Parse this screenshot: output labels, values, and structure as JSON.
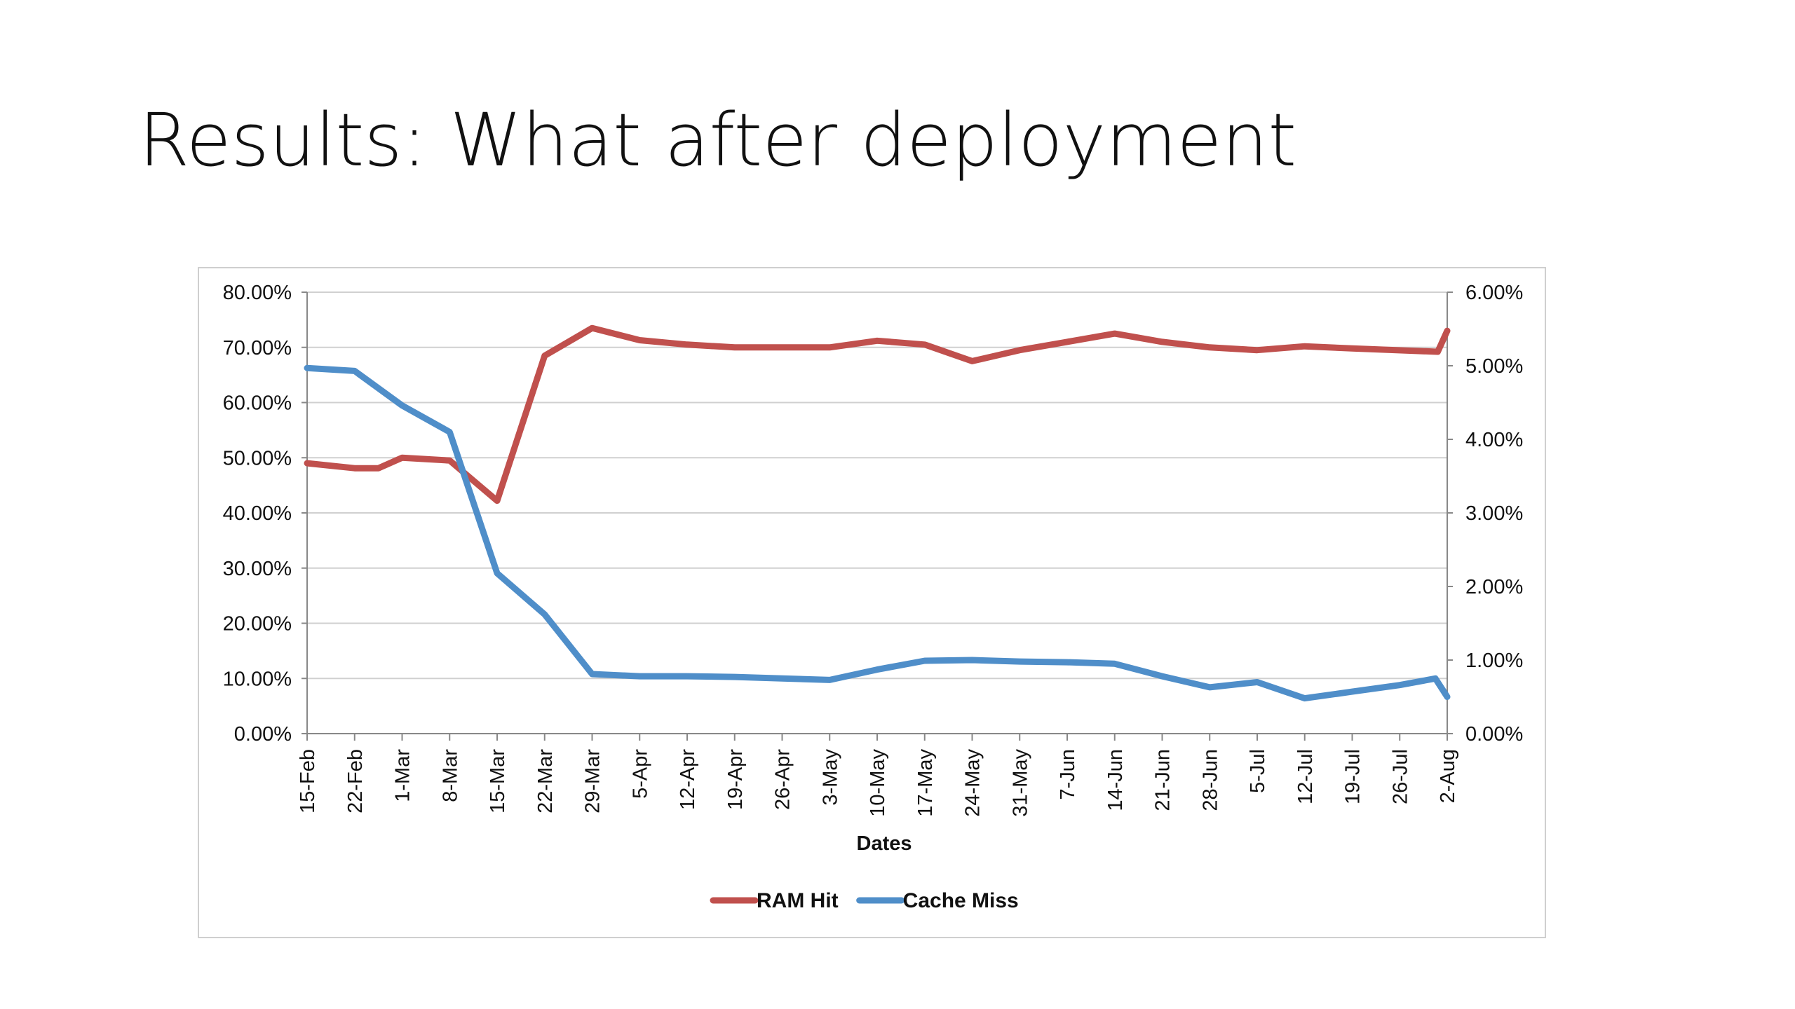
{
  "slide": {
    "title": "Results: What after deployment"
  },
  "chart_data": {
    "type": "line",
    "title": "",
    "xlabel": "Dates",
    "ylabel": "",
    "grid": true,
    "legend_position": "bottom",
    "x": [
      "15-Feb",
      "22-Feb",
      "1-Mar",
      "8-Mar",
      "15-Mar",
      "22-Mar",
      "29-Mar",
      "5-Apr",
      "12-Apr",
      "19-Apr",
      "26-Apr",
      "3-May",
      "10-May",
      "17-May",
      "24-May",
      "31-May",
      "7-Jun",
      "14-Jun",
      "21-Jun",
      "28-Jun",
      "5-Jul",
      "12-Jul",
      "19-Jul",
      "26-Jul",
      "2-Aug"
    ],
    "y_left": {
      "range": [
        0,
        80
      ],
      "ticks": [
        "0.00%",
        "10.00%",
        "20.00%",
        "30.00%",
        "40.00%",
        "50.00%",
        "60.00%",
        "70.00%",
        "80.00%"
      ]
    },
    "y_right": {
      "range": [
        0,
        6
      ],
      "ticks": [
        "0.00%",
        "1.00%",
        "2.00%",
        "3.00%",
        "4.00%",
        "5.00%",
        "6.00%"
      ]
    },
    "series": [
      {
        "name": "RAM Hit",
        "axis": "left",
        "color": "#c0504d",
        "points": [
          [
            "15-Feb",
            49.0
          ],
          [
            "22-Feb",
            48.1
          ],
          [
            "22-Feb",
            48.1
          ],
          [
            "1-Mar",
            50.0
          ],
          [
            "8-Mar",
            49.5
          ],
          [
            "15-Mar",
            42.2
          ],
          [
            "22-Mar",
            68.5
          ],
          [
            "29-Mar",
            73.5
          ],
          [
            "5-Apr",
            71.3
          ],
          [
            "12-Apr",
            70.5
          ],
          [
            "19-Apr",
            70.0
          ],
          [
            "26-Apr",
            70.0
          ],
          [
            "3-May",
            70.0
          ],
          [
            "10-May",
            71.2
          ],
          [
            "17-May",
            70.5
          ],
          [
            "24-May",
            67.5
          ],
          [
            "31-May",
            69.5
          ],
          [
            "7-Jun",
            71.0
          ],
          [
            "14-Jun",
            72.5
          ],
          [
            "21-Jun",
            71.0
          ],
          [
            "28-Jun",
            70.0
          ],
          [
            "5-Jul",
            69.5
          ],
          [
            "12-Jul",
            70.2
          ],
          [
            "19-Jul",
            69.8
          ],
          [
            "26-Jul",
            69.2
          ],
          [
            "2-Aug",
            73.0
          ]
        ],
        "point_offsets": [
          0,
          1,
          1.5,
          2,
          3,
          4,
          5,
          6,
          7,
          8,
          9,
          10,
          11,
          12,
          13,
          14,
          15,
          16,
          17,
          18,
          19,
          20,
          21,
          22,
          23.8,
          24
        ]
      },
      {
        "name": "Cache Miss",
        "axis": "right",
        "color": "#4f8ec9",
        "points": [
          [
            "15-Feb",
            4.97
          ],
          [
            "22-Feb",
            4.93
          ],
          [
            "1-Mar",
            4.46
          ],
          [
            "8-Mar",
            4.1
          ],
          [
            "15-Mar",
            2.18
          ],
          [
            "22-Mar",
            1.62
          ],
          [
            "29-Mar",
            0.81
          ],
          [
            "5-Apr",
            0.78
          ],
          [
            "12-Apr",
            0.78
          ],
          [
            "19-Apr",
            0.77
          ],
          [
            "26-Apr",
            0.75
          ],
          [
            "3-May",
            0.73
          ],
          [
            "10-May",
            0.87
          ],
          [
            "17-May",
            0.99
          ],
          [
            "24-May",
            1.0
          ],
          [
            "31-May",
            0.98
          ],
          [
            "7-Jun",
            0.97
          ],
          [
            "14-Jun",
            0.95
          ],
          [
            "21-Jun",
            0.78
          ],
          [
            "28-Jun",
            0.63
          ],
          [
            "5-Jul",
            0.7
          ],
          [
            "12-Jul",
            0.48
          ],
          [
            "19-Jul",
            0.57
          ],
          [
            "26-Jul",
            0.66
          ],
          [
            "2-Aug",
            0.75
          ],
          [
            "2-Aug",
            0.5
          ]
        ],
        "point_offsets": [
          0,
          1,
          2,
          3,
          4,
          5,
          6,
          7,
          8,
          9,
          10,
          11,
          12,
          13,
          14,
          15,
          16,
          17,
          18,
          19,
          20,
          21,
          22,
          23,
          23.75,
          24
        ]
      }
    ]
  }
}
